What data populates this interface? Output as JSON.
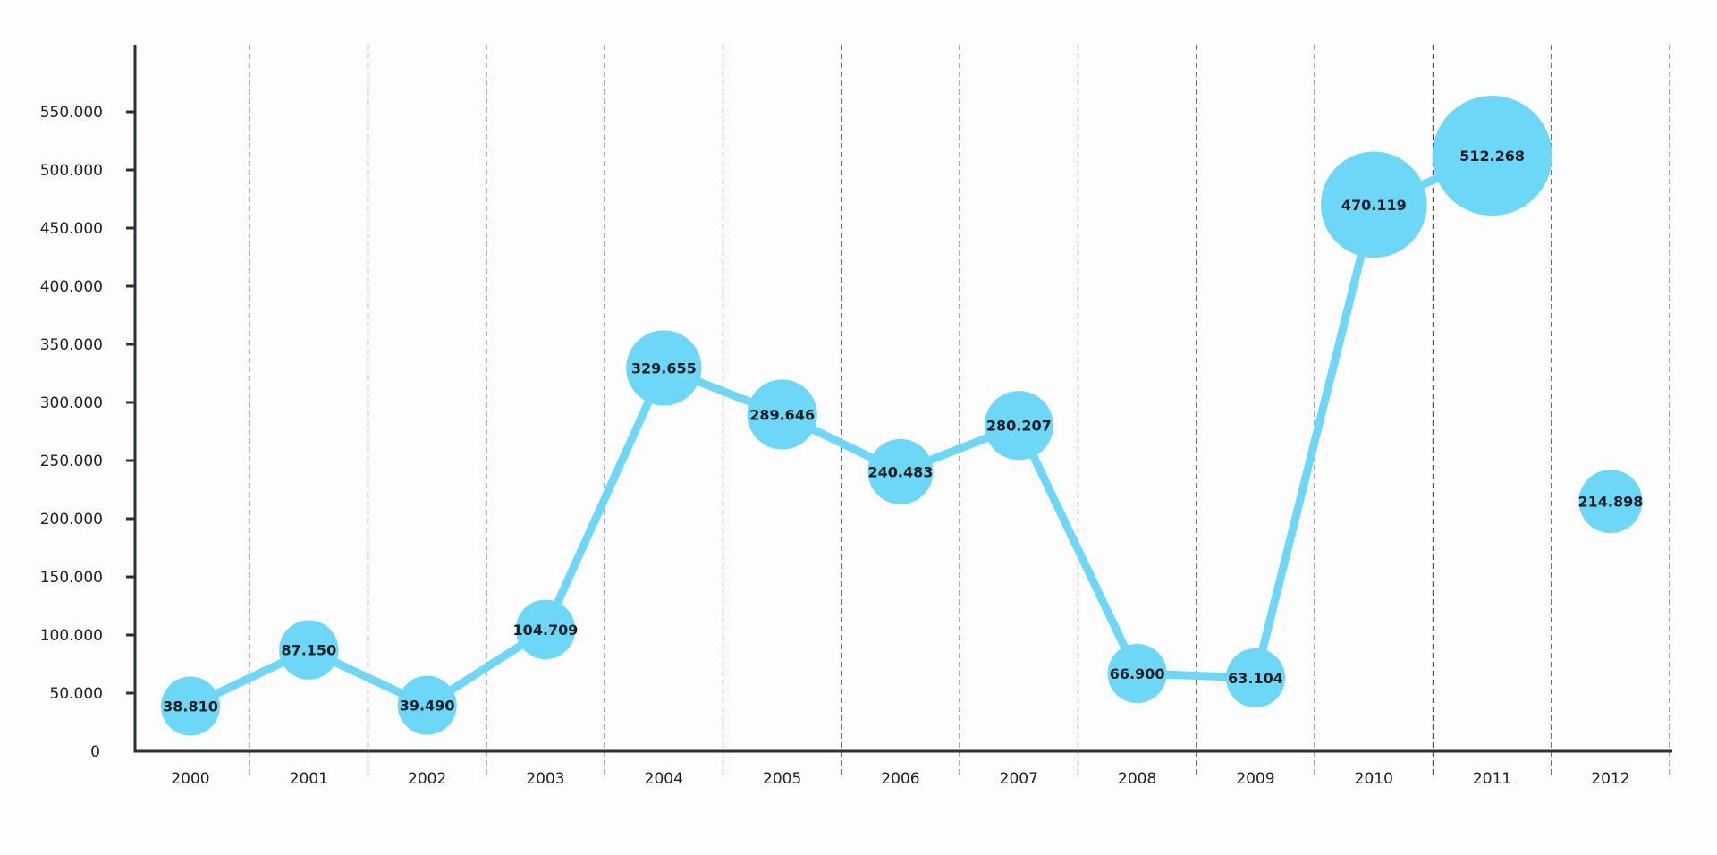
{
  "chart_data": {
    "type": "line",
    "title": "",
    "xlabel": "",
    "ylabel": "",
    "categories": [
      "2000",
      "2001",
      "2002",
      "2003",
      "2004",
      "2005",
      "2006",
      "2007",
      "2008",
      "2009",
      "2010",
      "2011",
      "2012"
    ],
    "series": [
      {
        "values": [
          38810,
          87150,
          39490,
          104709,
          329655,
          289646,
          240483,
          280207,
          66900,
          63104,
          470119,
          512268,
          214898
        ],
        "labels": [
          "38.810",
          "87.150",
          "39.490",
          "104.709",
          "329.655",
          "289.646",
          "240.483",
          "280.207",
          "66.900",
          "63.104",
          "470.119",
          "512.268",
          "214.898"
        ],
        "marker_size_encodes_value": true,
        "line_gap_before": [
          "2012"
        ]
      }
    ],
    "ylim": [
      0,
      600000
    ],
    "yticks": [
      0,
      50000,
      100000,
      150000,
      200000,
      250000,
      300000,
      350000,
      400000,
      450000,
      500000,
      550000
    ],
    "ytick_labels": [
      "0",
      "50.000",
      "100.000",
      "150.000",
      "200.000",
      "250.000",
      "300.000",
      "350.000",
      "400.000",
      "450.000",
      "500.000",
      "550.000"
    ],
    "grid": "vertical dashed between categories",
    "legend": "none",
    "colors": {
      "series": "#6dd7f7",
      "axis": "#2c3136",
      "grid": "#4a4f55",
      "text": "#1b1e22"
    }
  }
}
